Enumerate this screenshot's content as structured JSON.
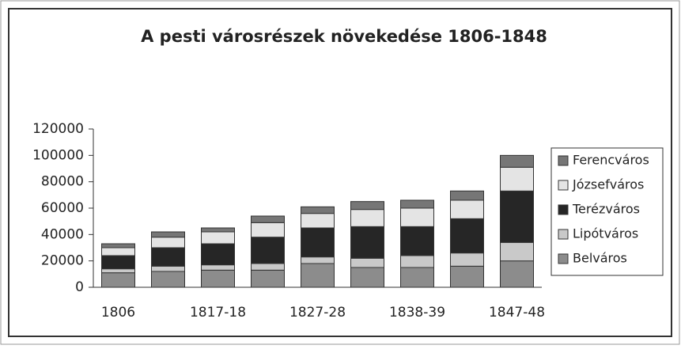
{
  "chart_data": {
    "type": "bar",
    "stacked": true,
    "title": "A pesti városrészek növekedése 1806-1848",
    "categories": [
      "1806",
      null,
      "1817-18",
      null,
      "1827-28",
      null,
      "1838-39",
      null,
      "1847-48"
    ],
    "series": [
      {
        "name": "Belváros",
        "color": "#8c8c8c",
        "values": [
          11000,
          12000,
          13000,
          13000,
          18000,
          15000,
          15000,
          16000,
          20000
        ]
      },
      {
        "name": "Lipótváros",
        "color": "#c9c9c9",
        "values": [
          3000,
          4000,
          4000,
          5000,
          5000,
          7000,
          9000,
          10000,
          14000
        ]
      },
      {
        "name": "Terézváros",
        "color": "#262626",
        "values": [
          10000,
          14000,
          16000,
          20000,
          22000,
          24000,
          22000,
          26000,
          39000
        ]
      },
      {
        "name": "Józsefváros",
        "color": "#e4e4e4",
        "values": [
          6000,
          8000,
          9000,
          11000,
          11000,
          13000,
          14000,
          14000,
          18000
        ]
      },
      {
        "name": "Ferencváros",
        "color": "#767676",
        "values": [
          3000,
          4000,
          3000,
          5000,
          5000,
          6000,
          6000,
          7000,
          9000
        ]
      }
    ],
    "ylim": [
      0,
      120000
    ],
    "yticks": [
      0,
      20000,
      40000,
      60000,
      80000,
      100000,
      120000
    ],
    "legend": "right"
  }
}
